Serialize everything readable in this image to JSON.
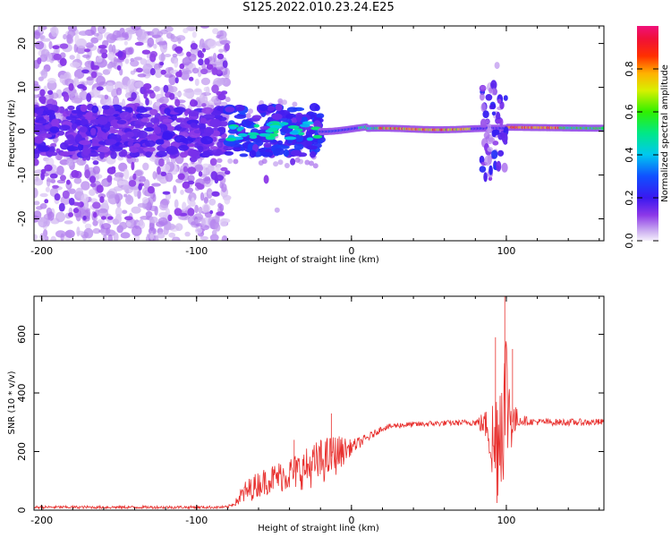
{
  "title": "S125.2022.010.23.24.E25",
  "colors": {
    "snr_line": "#e8302e",
    "axis": "#000000",
    "background": "#ffffff"
  },
  "chart_data": [
    {
      "type": "heatmap",
      "xlabel": "Height of straight line (km)",
      "ylabel": "Frequency (Hz)",
      "xlim": [
        -205,
        163
      ],
      "ylim": [
        -25,
        24
      ],
      "x_ticks": [
        -200,
        -100,
        0,
        100
      ],
      "y_ticks": [
        -20,
        -10,
        0,
        10,
        20
      ],
      "x_tick_labels": [
        "-200",
        "-100",
        "0",
        "100"
      ],
      "y_tick_labels": [
        "-20",
        "-10",
        "0",
        "10",
        "20"
      ],
      "colorbar": {
        "label": "Normalized spectral amplitude",
        "range": [
          0,
          1
        ],
        "ticks": [
          0.0,
          0.2,
          0.4,
          0.6,
          0.8
        ],
        "tick_labels": [
          "0.0",
          "0.2",
          "0.4",
          "0.6",
          "0.8"
        ],
        "colormap": "rainbow (violet → blue → cyan → green → yellow → red → magenta)"
      },
      "description_of_data": "Broad weak noise spread over all frequencies for heights below about -80 km; dense blobs concentrated within ±5 Hz; from about -20 km onward a coherent narrow line near 0–1 Hz with high amplitude (red) between 20 and 75 km and from 100 to 160 km; strong scatter near 90–100 km."
    },
    {
      "type": "line",
      "xlabel": "Height of straight line (km)",
      "ylabel": "SNR (10 * v/v)",
      "xlim": [
        -205,
        163
      ],
      "ylim": [
        0,
        730
      ],
      "x_ticks": [
        -200,
        -100,
        0,
        100
      ],
      "y_ticks": [
        0,
        200,
        400,
        600
      ],
      "x_tick_labels": [
        "-200",
        "-100",
        "0",
        "100"
      ],
      "y_tick_labels": [
        "0",
        "200",
        "400",
        "600"
      ],
      "series": [
        {
          "color": "#e8302e",
          "profile_x": [
            -205,
            -80,
            -75,
            -70,
            -60,
            -50,
            -40,
            -30,
            -20,
            -10,
            0,
            10,
            20,
            30,
            40,
            50,
            60,
            70,
            80,
            88,
            92,
            96,
            100,
            104,
            108,
            115,
            130,
            163
          ],
          "profile_y": [
            10,
            10,
            25,
            55,
            90,
            110,
            125,
            140,
            165,
            190,
            215,
            245,
            280,
            290,
            292,
            295,
            297,
            298,
            300,
            290,
            200,
            300,
            400,
            300,
            310,
            302,
            300,
            300
          ],
          "noise_amplitude_y": [
            5,
            5,
            10,
            40,
            45,
            50,
            60,
            70,
            80,
            70,
            25,
            15,
            10,
            10,
            10,
            10,
            10,
            10,
            12,
            60,
            220,
            250,
            270,
            80,
            25,
            12,
            12,
            12
          ]
        }
      ]
    }
  ]
}
